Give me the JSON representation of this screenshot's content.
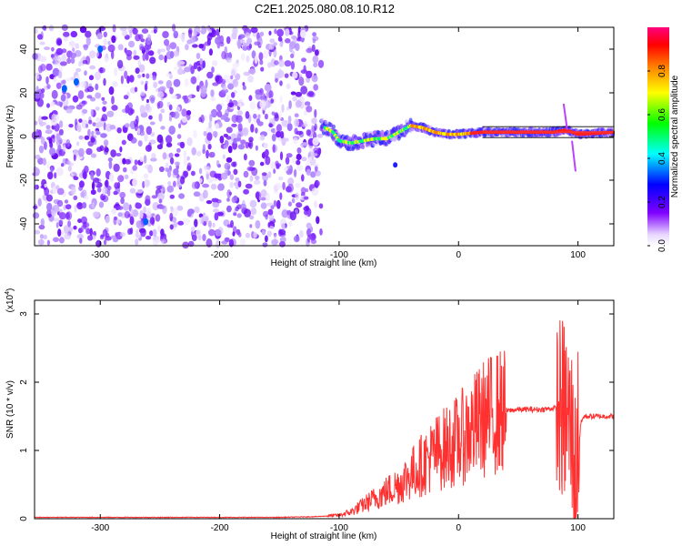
{
  "title": "C2E1.2025.080.08.10.R12",
  "chart_data": [
    {
      "type": "heatmap",
      "xlabel": "Height of straight line (km)",
      "ylabel": "Frequency (Hz)",
      "xlim": [
        -355,
        130
      ],
      "ylim": [
        -50,
        50
      ],
      "x_ticks": [
        -300,
        -200,
        -100,
        0,
        100
      ],
      "y_ticks": [
        -40,
        -20,
        0,
        20,
        40
      ],
      "x_tick_labels": [
        "-300",
        "-200",
        "-100",
        "0",
        "100"
      ],
      "y_tick_labels": [
        "-40",
        "-20",
        "0",
        "20",
        "40"
      ],
      "noise_region_x": [
        -355,
        -115
      ],
      "signal_track": [
        {
          "x": -115,
          "y": 5
        },
        {
          "x": -105,
          "y": 2
        },
        {
          "x": -100,
          "y": -2
        },
        {
          "x": -90,
          "y": -3
        },
        {
          "x": -80,
          "y": -2
        },
        {
          "x": -70,
          "y": -1
        },
        {
          "x": -60,
          "y": -1
        },
        {
          "x": -50,
          "y": 2
        },
        {
          "x": -40,
          "y": 5
        },
        {
          "x": -30,
          "y": 4
        },
        {
          "x": -20,
          "y": 2
        },
        {
          "x": -10,
          "y": 1
        },
        {
          "x": 0,
          "y": 1
        },
        {
          "x": 20,
          "y": 2
        },
        {
          "x": 40,
          "y": 2
        },
        {
          "x": 60,
          "y": 2
        },
        {
          "x": 80,
          "y": 2
        },
        {
          "x": 90,
          "y": 3
        },
        {
          "x": 100,
          "y": 1
        },
        {
          "x": 130,
          "y": 2
        }
      ],
      "colorbar": {
        "label": "Normalized spectral amplitude",
        "range": [
          0,
          1
        ],
        "ticks": [
          0,
          0.2,
          0.4,
          0.6,
          0.8
        ],
        "tick_labels": [
          "0.0",
          "0.2",
          "0.4",
          "0.6",
          "0.8"
        ],
        "colors": [
          "#ffffff",
          "#e8d8ff",
          "#8000ff",
          "#0000ff",
          "#00ffff",
          "#00ff00",
          "#ffff00",
          "#ff8000",
          "#ff0000",
          "#ff0080"
        ]
      }
    },
    {
      "type": "line",
      "xlabel": "Height of straight line (km)",
      "ylabel": "SNR (10 * v/v)",
      "scale_label": "(x10",
      "scale_exp": "4",
      "scale_close": ")",
      "xlim": [
        -355,
        130
      ],
      "ylim": [
        0,
        3.2
      ],
      "x_ticks": [
        -300,
        -200,
        -100,
        0,
        100
      ],
      "y_ticks": [
        0,
        1,
        2,
        3
      ],
      "x_tick_labels": [
        "-300",
        "-200",
        "-100",
        "0",
        "100"
      ],
      "y_tick_labels": [
        "0",
        "1",
        "2",
        "3"
      ],
      "color": "#ff3030",
      "series": [
        {
          "x": [
            -355,
            -300,
            -250,
            -200,
            -150,
            -120,
            -100,
            -90,
            -80,
            -70,
            -60,
            -50,
            -40,
            -30,
            -20,
            -10,
            0,
            10,
            20,
            30,
            40,
            50,
            60,
            70,
            80,
            85,
            90,
            95,
            98,
            100,
            105,
            110,
            120,
            130
          ],
          "y": [
            0.02,
            0.02,
            0.02,
            0.02,
            0.02,
            0.03,
            0.05,
            0.1,
            0.2,
            0.3,
            0.4,
            0.5,
            0.65,
            0.8,
            0.95,
            1.05,
            1.15,
            1.3,
            1.45,
            1.55,
            1.58,
            1.6,
            1.6,
            1.6,
            1.62,
            1.6,
            1.55,
            1.2,
            0.5,
            1.3,
            1.5,
            1.5,
            1.5,
            1.5
          ]
        }
      ]
    }
  ]
}
